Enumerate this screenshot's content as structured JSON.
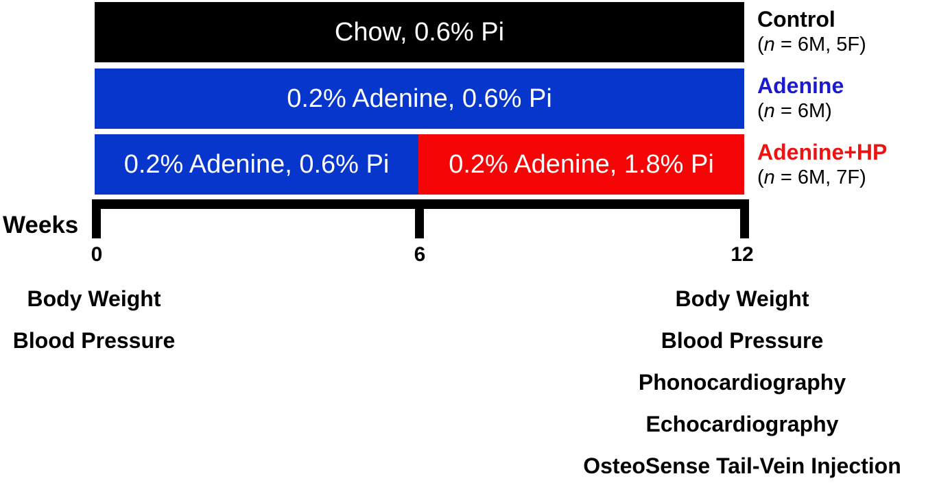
{
  "figure": {
    "type": "study-design-timeline",
    "background": "#ffffff"
  },
  "timeline": {
    "axis_label": "Weeks",
    "ticks": [
      {
        "label": "0",
        "week": 0
      },
      {
        "label": "6",
        "week": 6
      },
      {
        "label": "12",
        "week": 12
      }
    ]
  },
  "groups": [
    {
      "label": "Control",
      "label_color": "#000000",
      "n_prefix": "(",
      "n_italic": "n",
      "n_suffix": " = 6M, 5F)",
      "segments": [
        {
          "text": "Chow, 0.6% Pi",
          "color": "#000000",
          "from_week": 0,
          "to_week": 12
        }
      ]
    },
    {
      "label": "Adenine",
      "label_color": "#1a1ad2",
      "n_prefix": "(",
      "n_italic": "n",
      "n_suffix": " = 6M)",
      "segments": [
        {
          "text": "0.2% Adenine, 0.6% Pi",
          "color": "#0636cb",
          "from_week": 0,
          "to_week": 12
        }
      ]
    },
    {
      "label": "Adenine+HP",
      "label_color": "#ec1313",
      "n_prefix": "(",
      "n_italic": "n",
      "n_suffix": " = 6M, 7F)",
      "segments": [
        {
          "text": "0.2% Adenine, 0.6% Pi",
          "color": "#0636cb",
          "from_week": 0,
          "to_week": 6
        },
        {
          "text": "0.2% Adenine, 1.8% Pi",
          "color": "#f50505",
          "from_week": 6,
          "to_week": 12
        }
      ]
    }
  ],
  "assessments": {
    "week0": {
      "items": [
        "Body Weight",
        "Blood Pressure"
      ]
    },
    "week12": {
      "items": [
        "Body Weight",
        "Blood Pressure",
        "Phonocardiography",
        "Echocardiography",
        "OsteoSense Tail-Vein Injection"
      ]
    }
  },
  "colors": {
    "control_bar": "#000000",
    "adenine_bar": "#0636cb",
    "high_phosphate_bar": "#f50505",
    "adenine_label": "#1a1ad2",
    "adenine_hp_label": "#ec1313",
    "axis": "#000000",
    "bar_text": "#ffffff"
  }
}
